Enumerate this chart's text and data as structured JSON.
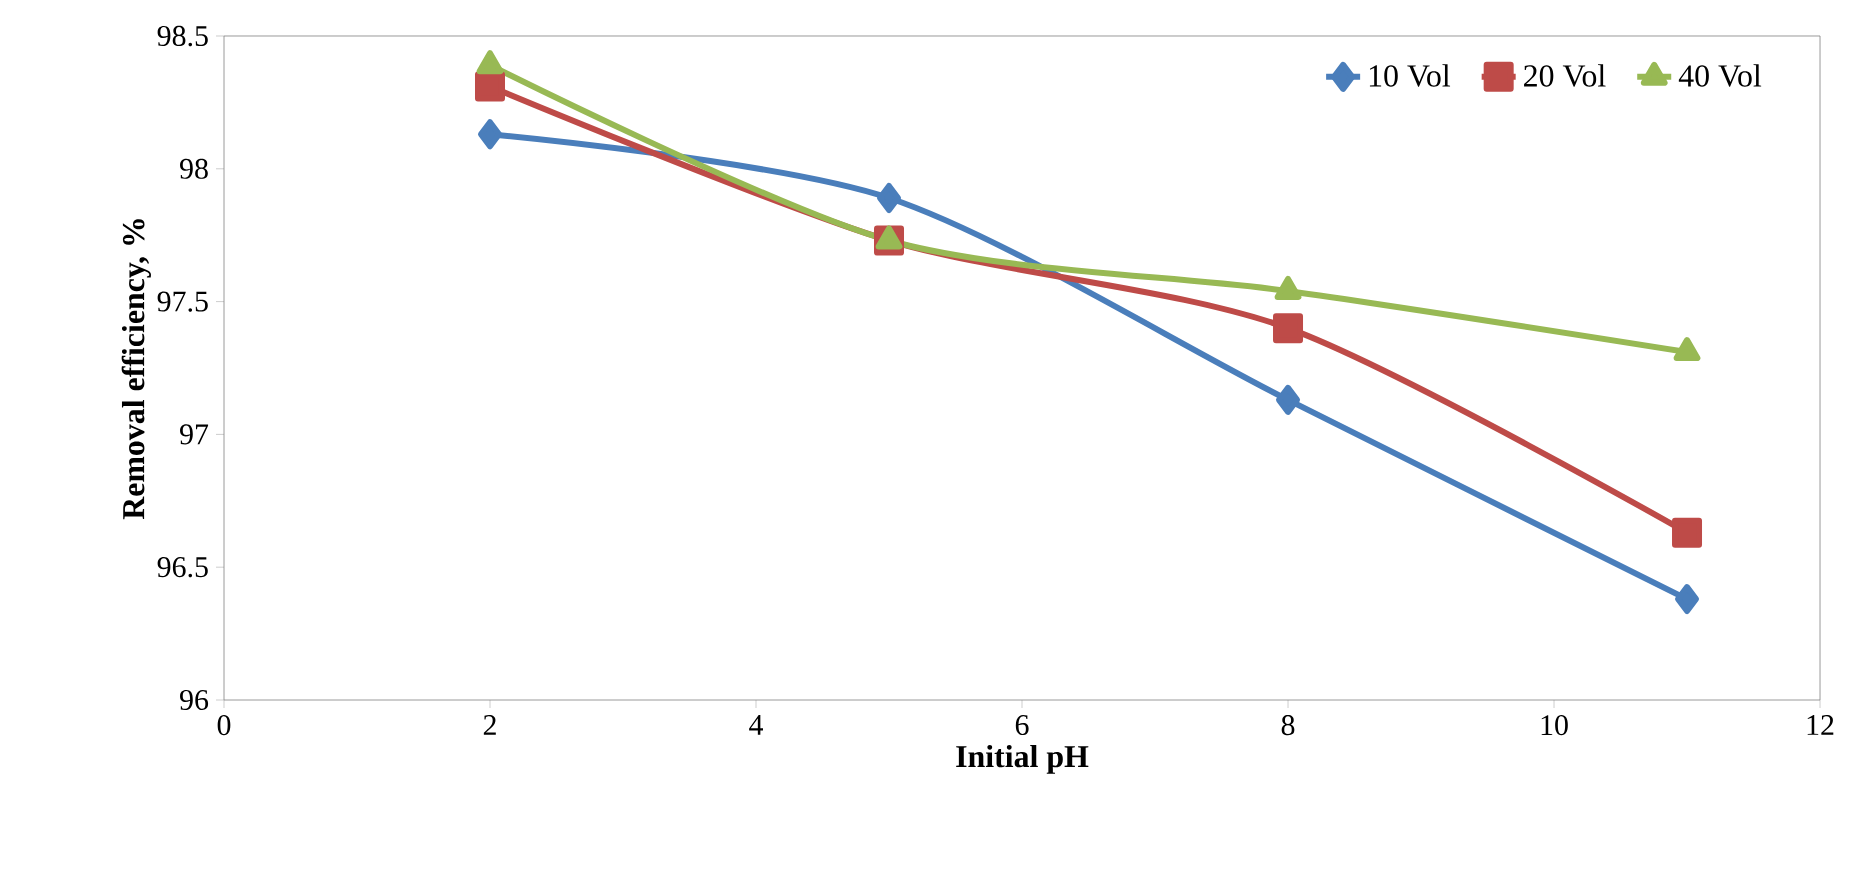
{
  "chart_data": {
    "type": "line",
    "xlabel": "Initial pH",
    "ylabel": "Removal efficiency, %",
    "xlim": [
      0,
      12
    ],
    "xticks": [
      0,
      2,
      4,
      6,
      8,
      10,
      12
    ],
    "ylim": [
      96,
      98.5
    ],
    "yticks": [
      96,
      96.5,
      97,
      97.5,
      98,
      98.5
    ],
    "x": [
      2,
      5,
      8,
      11
    ],
    "legend": "top right",
    "grid": false,
    "series": [
      {
        "name": "10 Vol",
        "color": "#4a7ebb",
        "marker": "diamond",
        "values": [
          98.13,
          97.89,
          97.13,
          96.38
        ]
      },
      {
        "name": "20 Vol",
        "color": "#be4b48",
        "marker": "square",
        "values": [
          98.31,
          97.73,
          97.4,
          96.63
        ]
      },
      {
        "name": "40 Vol",
        "color": "#98b954",
        "marker": "triangle",
        "values": [
          98.39,
          97.73,
          97.54,
          97.31
        ]
      }
    ]
  }
}
